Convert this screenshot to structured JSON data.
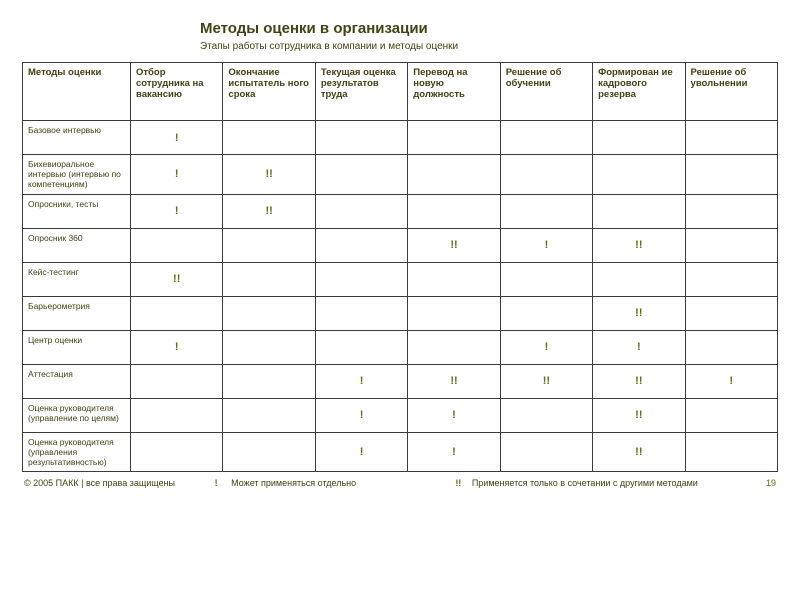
{
  "title": "Методы оценки в организации",
  "subtitle": "Этапы работы сотрудника в компании и методы оценки",
  "colors": {
    "text": "#444214",
    "marks": "#6b6a17",
    "border": "#3b3b3b",
    "background": "#ffffff"
  },
  "table": {
    "columns": [
      "Методы оценки",
      "Отбор сотрудника на вакансию",
      "Окончание испытатель ного срока",
      "Текущая оценка результатов труда",
      "Перевод на новую должность",
      "Решение об обучении",
      "Формирован ие кадрового резерва",
      "Решение об увольнении"
    ],
    "rows": [
      {
        "label": "Базовое интервью",
        "cells": [
          "!",
          "",
          "",
          "",
          "",
          "",
          ""
        ]
      },
      {
        "label": "Бихевиоральное интервью (интервью по компетенциям)",
        "cells": [
          "!",
          "!!",
          "",
          "",
          "",
          "",
          ""
        ]
      },
      {
        "label": "Опросники, тесты",
        "cells": [
          "!",
          "!!",
          "",
          "",
          "",
          "",
          ""
        ]
      },
      {
        "label": "Опросник 360",
        "cells": [
          "",
          "",
          "",
          "!!",
          "!",
          "!!",
          ""
        ]
      },
      {
        "label": "Кейс-тестинг",
        "cells": [
          "!!",
          "",
          "",
          "",
          "",
          "",
          ""
        ]
      },
      {
        "label": "Барьерометрия",
        "cells": [
          "",
          "",
          "",
          "",
          "",
          "!!",
          ""
        ]
      },
      {
        "label": "Центр оценки",
        "cells": [
          "!",
          "",
          "",
          "",
          "!",
          "!",
          ""
        ]
      },
      {
        "label": "Аттестация",
        "cells": [
          "",
          "",
          "!",
          "!!",
          "!!",
          "!!",
          "!"
        ]
      },
      {
        "label": "Оценка руководителя (управление по целям)",
        "cells": [
          "",
          "",
          "!",
          "!",
          "",
          "!!",
          ""
        ]
      },
      {
        "label": "Оценка руководителя (управления результативностью)",
        "cells": [
          "",
          "",
          "!",
          "!",
          "",
          "!!",
          ""
        ]
      }
    ]
  },
  "legend": {
    "single_mark": "!",
    "single_text": "Может применяться отдельно",
    "double_mark": "!!",
    "double_text": "Применяется только в сочетании с другими методами"
  },
  "footer_left": "© 2005 ПАКК | все права защищены",
  "page_number": "19"
}
